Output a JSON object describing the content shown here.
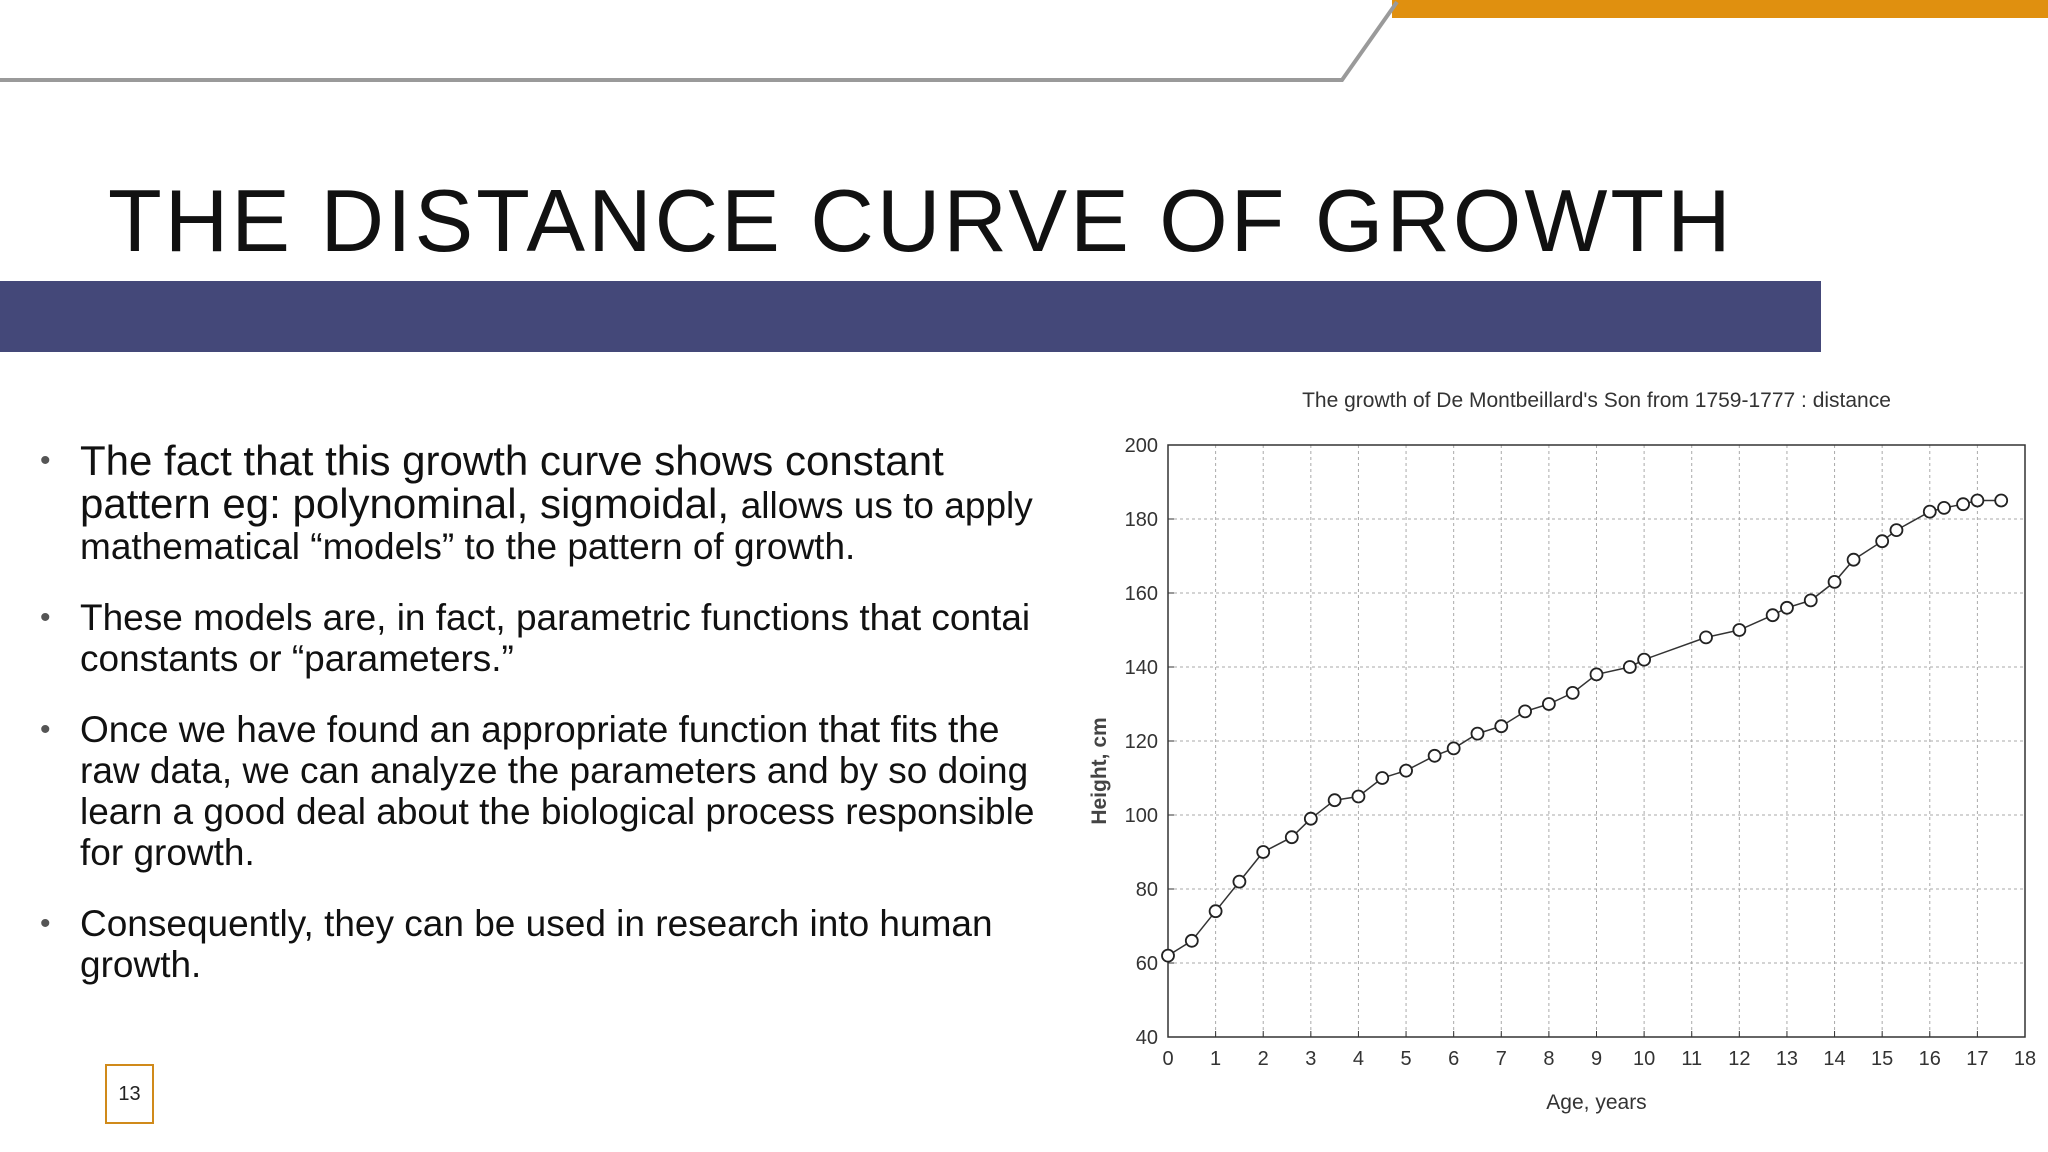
{
  "slide": {
    "title": "THE DISTANCE CURVE OF GROWTH",
    "page_number": "13",
    "colors": {
      "accent_orange": "#E0900F",
      "title_bar": "#444879",
      "gray_line": "#9a9a9a"
    }
  },
  "bullets": [
    {
      "lines": [
        {
          "text": "The fact that this growth curve shows constant",
          "style": "large"
        },
        {
          "parts": [
            {
              "text": "pattern eg: polynominal, sigmoidal, ",
              "style": "large"
            },
            {
              "text": "allows us to apply",
              "style": "normal"
            }
          ]
        },
        {
          "text": "mathematical “models” to the pattern of growth.",
          "style": "normal"
        }
      ]
    },
    {
      "lines": [
        {
          "text": "These models are, in fact, parametric functions that contai"
        },
        {
          "text": "constants or “parameters.”"
        }
      ]
    },
    {
      "lines": [
        {
          "text": "Once we have found an appropriate function that fits the"
        },
        {
          "text": "raw data, we can analyze the parameters and by so doing"
        },
        {
          "text": "learn a good deal about the biological process responsible"
        },
        {
          "text": "for growth."
        }
      ]
    },
    {
      "lines": [
        {
          "text": "Consequently, they can be used in research into human"
        },
        {
          "text": "growth."
        }
      ]
    }
  ],
  "chart_data": {
    "type": "line",
    "title": "The growth of De Montbeillard's Son from 1759-1777 : distance",
    "xlabel": "Age, years",
    "ylabel": "Height, cm",
    "xlim": [
      0,
      18
    ],
    "ylim": [
      40,
      200
    ],
    "xticks": [
      0,
      1,
      2,
      3,
      4,
      5,
      6,
      7,
      8,
      9,
      10,
      11,
      12,
      13,
      14,
      15,
      16,
      17,
      18
    ],
    "yticks": [
      40,
      60,
      80,
      100,
      120,
      140,
      160,
      180,
      200
    ],
    "grid": true,
    "marker": "open-circle",
    "series": [
      {
        "x": [
          0,
          0.5,
          1,
          1.5,
          2,
          2.6,
          3,
          3.5,
          4,
          4.5,
          5,
          5.6,
          6,
          6.5,
          7,
          7.5,
          8,
          8.5,
          9,
          9.7,
          10,
          11.3,
          12,
          12.7,
          13,
          13.5,
          14,
          14.4,
          15,
          15.3,
          16,
          16.3,
          16.7,
          17,
          17.5
        ],
        "y": [
          62,
          66,
          74,
          82,
          90,
          94,
          99,
          104,
          105,
          110,
          112,
          116,
          118,
          122,
          124,
          128,
          130,
          133,
          138,
          140,
          142,
          148,
          150,
          154,
          156,
          158,
          163,
          169,
          174,
          177,
          182,
          183,
          184,
          185,
          185
        ]
      }
    ]
  }
}
